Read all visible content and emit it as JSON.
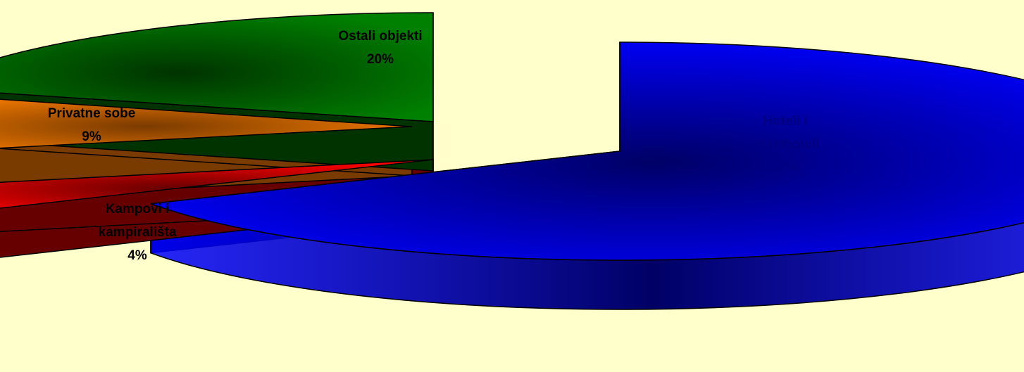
{
  "chart_data": {
    "type": "pie",
    "style": "3d-exploded",
    "title": "",
    "slices": [
      {
        "name_lines": [
          "Hoteli i",
          "aparthoteli"
        ],
        "pct_label": "67%",
        "value": 67,
        "color": "#0000ff",
        "dark": "#000066",
        "label_color": "#000080"
      },
      {
        "name_lines": [
          "Kampovi i",
          "kampirališta"
        ],
        "pct_label": "4%",
        "value": 4,
        "color": "#ff0000",
        "dark": "#660000",
        "label_color": "#000000"
      },
      {
        "name_lines": [
          "Privatne sobe"
        ],
        "pct_label": "9%",
        "value": 9,
        "color": "#ff8000",
        "dark": "#7a3b00",
        "label_color": "#000000"
      },
      {
        "name_lines": [
          "Ostali objekti"
        ],
        "pct_label": "20%",
        "value": 20,
        "color": "#008000",
        "dark": "#003300",
        "label_color": "#000000"
      }
    ]
  }
}
